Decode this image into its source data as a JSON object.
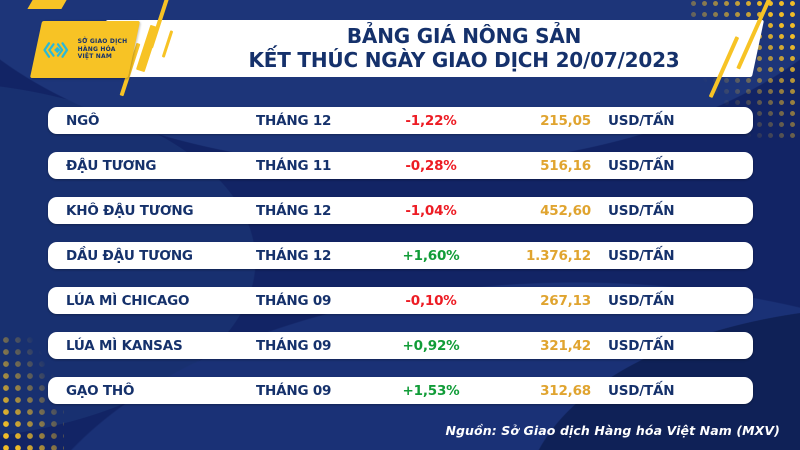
{
  "header": {
    "logo": {
      "org_name": "SỞ GIAO DỊCH\nHÀNG HÓA\nVIỆT NAM"
    },
    "title_line1": "BẢNG GIÁ NÔNG SẢN",
    "title_line2": "KẾT THÚC NGÀY GIAO DỊCH 20/07/2023"
  },
  "table": {
    "rows": [
      {
        "name": "NGÔ",
        "month": "THÁNG 12",
        "change": "-1,22%",
        "direction": "down",
        "price": "215,05",
        "unit": "USD/TẤN"
      },
      {
        "name": "ĐẬU TƯƠNG",
        "month": "THÁNG 11",
        "change": "-0,28%",
        "direction": "down",
        "price": "516,16",
        "unit": "USD/TẤN"
      },
      {
        "name": "KHÔ ĐẬU TƯƠNG",
        "month": "THÁNG 12",
        "change": "-1,04%",
        "direction": "down",
        "price": "452,60",
        "unit": "USD/TẤN"
      },
      {
        "name": "DẦU ĐẬU TƯƠNG",
        "month": "THÁNG 12",
        "change": "+1,60%",
        "direction": "up",
        "price": "1.376,12",
        "unit": "USD/TẤN"
      },
      {
        "name": "LÚA MÌ CHICAGO",
        "month": "THÁNG 09",
        "change": "-0,10%",
        "direction": "down",
        "price": "267,13",
        "unit": "USD/TẤN"
      },
      {
        "name": "LÚA MÌ KANSAS",
        "month": "THÁNG 09",
        "change": "+0,92%",
        "direction": "up",
        "price": "321,42",
        "unit": "USD/TẤN"
      },
      {
        "name": "GẠO THÔ",
        "month": "THÁNG 09",
        "change": "+1,53%",
        "direction": "up",
        "price": "312,68",
        "unit": "USD/TẤN"
      }
    ]
  },
  "footer": {
    "source": "Nguồn: Sở Giao dịch Hàng hóa Việt Nam (MXV)"
  },
  "colors": {
    "background_navy": "#122465",
    "text_navy": "#15316B",
    "down_red": "#ED1C24",
    "up_green": "#119C38",
    "price_gold": "#E0A42F",
    "accent_yellow": "#F7C325",
    "logo_teal": "#29B9D9"
  },
  "chart_data": {
    "type": "table",
    "title": "BẢNG GIÁ NÔNG SẢN — KẾT THÚC NGÀY GIAO DỊCH 20/07/2023",
    "rows": [
      {
        "commodity": "NGÔ",
        "contract_month": "THÁNG 12",
        "change_pct": -1.22,
        "price": 215.05,
        "unit": "USD/TẤN"
      },
      {
        "commodity": "ĐẬU TƯƠNG",
        "contract_month": "THÁNG 11",
        "change_pct": -0.28,
        "price": 516.16,
        "unit": "USD/TẤN"
      },
      {
        "commodity": "KHÔ ĐẬU TƯƠNG",
        "contract_month": "THÁNG 12",
        "change_pct": -1.04,
        "price": 452.6,
        "unit": "USD/TẤN"
      },
      {
        "commodity": "DẦU ĐẬU TƯƠNG",
        "contract_month": "THÁNG 12",
        "change_pct": 1.6,
        "price": 1376.12,
        "unit": "USD/TẤN"
      },
      {
        "commodity": "LÚA MÌ CHICAGO",
        "contract_month": "THÁNG 09",
        "change_pct": -0.1,
        "price": 267.13,
        "unit": "USD/TẤN"
      },
      {
        "commodity": "LÚA MÌ KANSAS",
        "contract_month": "THÁNG 09",
        "change_pct": 0.92,
        "price": 321.42,
        "unit": "USD/TẤN"
      },
      {
        "commodity": "GẠO THÔ",
        "contract_month": "THÁNG 09",
        "change_pct": 1.53,
        "price": 312.68,
        "unit": "USD/TẤN"
      }
    ],
    "source": "Nguồn: Sở Giao dịch Hàng hóa Việt Nam (MXV)"
  }
}
